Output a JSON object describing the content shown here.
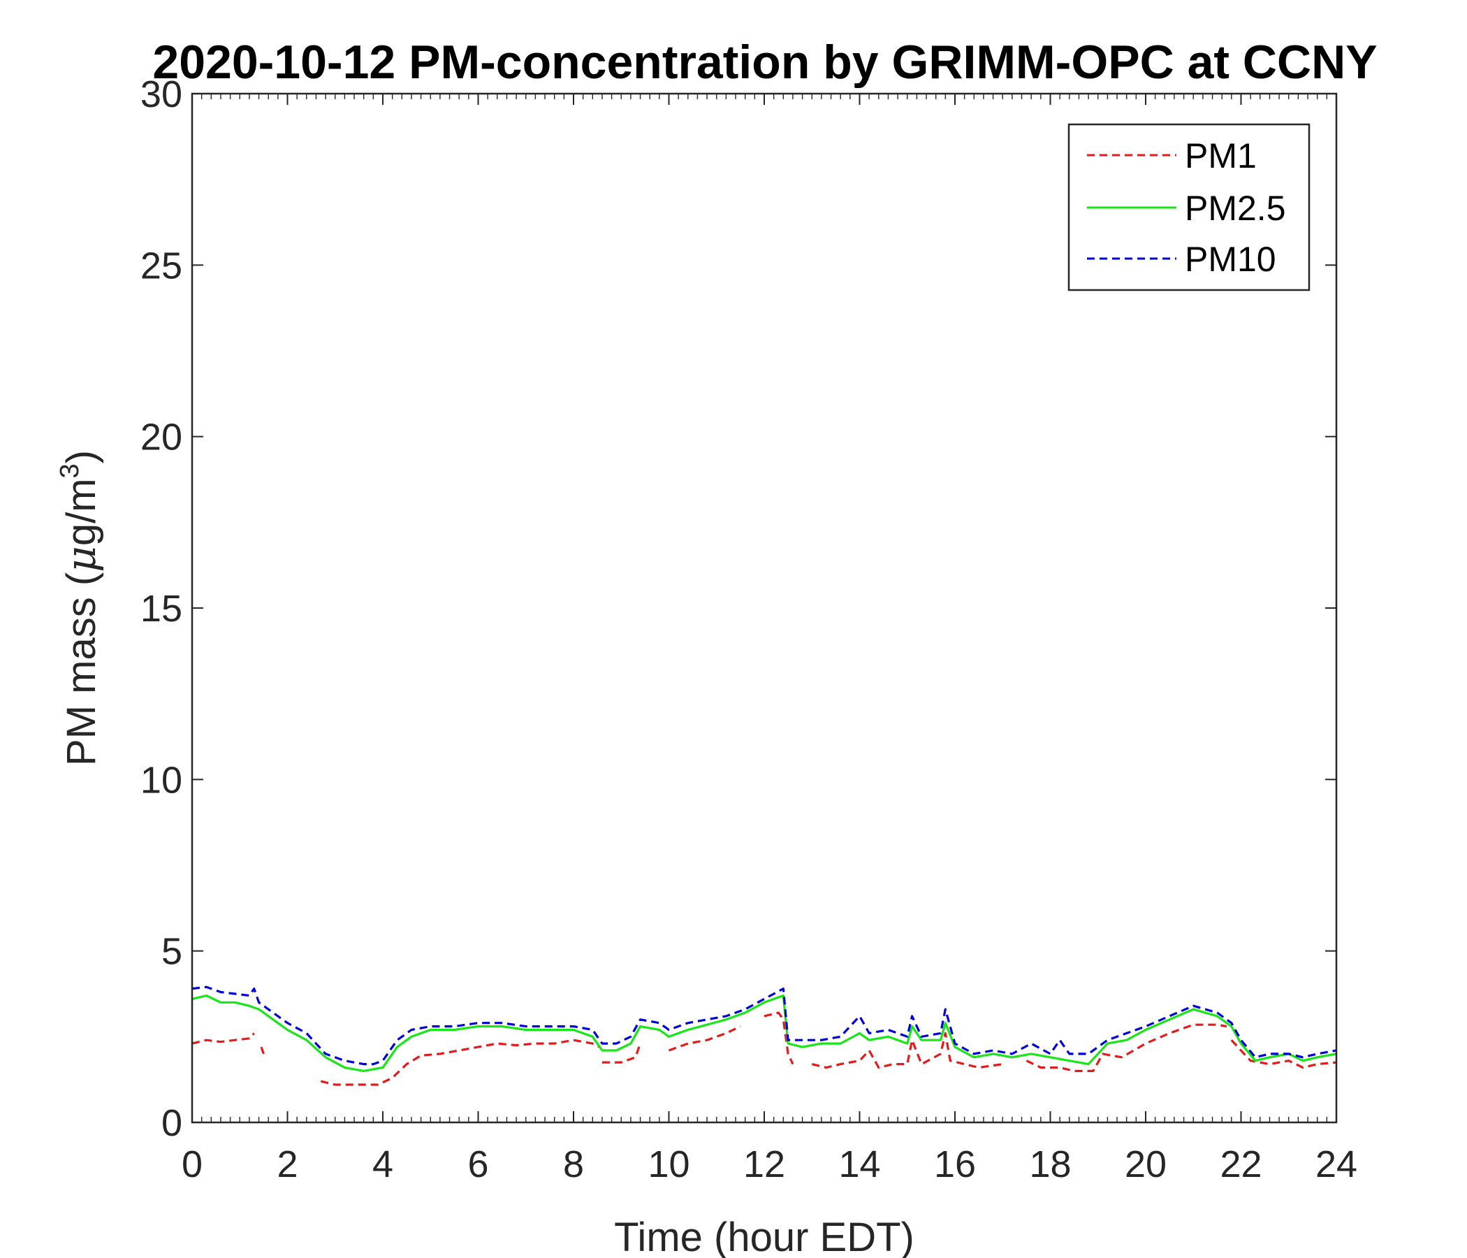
{
  "chart_data": {
    "type": "line",
    "title": "2020-10-12 PM-concentration by GRIMM-OPC at CCNY",
    "xlabel": "Time (hour EDT)",
    "ylabel_main": "PM mass (",
    "ylabel_mu": "μ",
    "ylabel_unit": "g/m",
    "ylabel_sup": "3",
    "ylabel_close": ")",
    "xlim": [
      0,
      24
    ],
    "ylim": [
      0,
      30
    ],
    "xticks": [
      "0",
      "2",
      "4",
      "6",
      "8",
      "10",
      "12",
      "14",
      "16",
      "18",
      "20",
      "22",
      "24"
    ],
    "yticks": [
      "0",
      "5",
      "10",
      "15",
      "20",
      "25",
      "30"
    ],
    "legend_position": "top-right",
    "grid": false,
    "series": [
      {
        "name": "PM1",
        "color": "#e41a1c",
        "dash": "dashed",
        "points": [
          [
            0,
            2.3
          ],
          [
            0.3,
            2.4
          ],
          [
            0.6,
            2.35
          ],
          [
            0.9,
            2.4
          ],
          [
            1.2,
            2.45
          ],
          [
            1.3,
            2.6
          ],
          null,
          [
            1.45,
            2.2
          ],
          [
            1.5,
            2.0
          ],
          null,
          [
            2.7,
            1.2
          ],
          [
            3.0,
            1.1
          ],
          [
            3.5,
            1.1
          ],
          [
            3.9,
            1.1
          ],
          [
            4.2,
            1.3
          ],
          [
            4.5,
            1.7
          ],
          [
            4.8,
            1.95
          ],
          [
            5.2,
            2.0
          ],
          [
            5.6,
            2.1
          ],
          [
            6.0,
            2.2
          ],
          [
            6.4,
            2.3
          ],
          [
            6.8,
            2.25
          ],
          [
            7.2,
            2.3
          ],
          [
            7.6,
            2.3
          ],
          [
            8.0,
            2.4
          ],
          [
            8.4,
            2.3
          ],
          [
            8.55,
            2.2
          ],
          null,
          [
            8.6,
            1.75
          ],
          [
            9.0,
            1.75
          ],
          [
            9.3,
            1.9
          ],
          [
            9.4,
            2.3
          ],
          null,
          [
            10.0,
            2.1
          ],
          [
            10.4,
            2.3
          ],
          [
            10.8,
            2.4
          ],
          [
            11.2,
            2.6
          ],
          [
            11.5,
            2.8
          ],
          null,
          [
            12.0,
            3.1
          ],
          [
            12.3,
            3.2
          ],
          [
            12.4,
            3.0
          ],
          [
            12.5,
            2.0
          ],
          [
            12.6,
            1.7
          ],
          null,
          [
            13.0,
            1.7
          ],
          [
            13.3,
            1.6
          ],
          [
            13.6,
            1.7
          ],
          [
            14.0,
            1.8
          ],
          [
            14.2,
            2.1
          ],
          [
            14.4,
            1.6
          ],
          [
            14.7,
            1.7
          ],
          [
            15.0,
            1.7
          ],
          [
            15.1,
            2.4
          ],
          [
            15.3,
            1.7
          ],
          [
            15.7,
            2.0
          ],
          [
            15.8,
            2.6
          ],
          [
            15.9,
            1.8
          ],
          [
            16.2,
            1.7
          ],
          [
            16.5,
            1.6
          ],
          [
            17.0,
            1.7
          ],
          null,
          [
            17.5,
            1.8
          ],
          [
            17.8,
            1.6
          ],
          [
            18.2,
            1.6
          ],
          [
            18.5,
            1.5
          ],
          [
            18.9,
            1.5
          ],
          [
            19.1,
            2.0
          ],
          [
            19.5,
            1.9
          ],
          [
            20.0,
            2.3
          ],
          [
            20.5,
            2.6
          ],
          [
            21.0,
            2.85
          ],
          [
            21.5,
            2.85
          ],
          [
            21.7,
            2.8
          ],
          null,
          [
            21.8,
            2.4
          ],
          [
            22.2,
            1.8
          ],
          [
            22.6,
            1.7
          ],
          [
            23.0,
            1.8
          ],
          [
            23.3,
            1.6
          ],
          [
            23.6,
            1.7
          ],
          [
            24.0,
            1.75
          ]
        ]
      },
      {
        "name": "PM2.5",
        "color": "#19e619",
        "dash": "solid",
        "points": [
          [
            0,
            3.6
          ],
          [
            0.3,
            3.7
          ],
          [
            0.6,
            3.5
          ],
          [
            0.9,
            3.5
          ],
          [
            1.2,
            3.4
          ],
          [
            1.4,
            3.3
          ],
          [
            1.7,
            3.0
          ],
          [
            2.0,
            2.7
          ],
          [
            2.4,
            2.4
          ],
          [
            2.8,
            1.9
          ],
          [
            3.2,
            1.6
          ],
          [
            3.6,
            1.5
          ],
          [
            4.0,
            1.6
          ],
          [
            4.3,
            2.2
          ],
          [
            4.6,
            2.5
          ],
          [
            5.0,
            2.7
          ],
          [
            5.5,
            2.7
          ],
          [
            6.0,
            2.8
          ],
          [
            6.5,
            2.8
          ],
          [
            7.0,
            2.7
          ],
          [
            7.5,
            2.7
          ],
          [
            8.0,
            2.7
          ],
          [
            8.4,
            2.5
          ],
          [
            8.6,
            2.1
          ],
          [
            8.9,
            2.1
          ],
          [
            9.2,
            2.3
          ],
          [
            9.4,
            2.8
          ],
          [
            9.8,
            2.7
          ],
          [
            10.0,
            2.5
          ],
          [
            10.4,
            2.7
          ],
          [
            10.8,
            2.85
          ],
          [
            11.2,
            3.0
          ],
          [
            11.6,
            3.2
          ],
          [
            12.0,
            3.5
          ],
          [
            12.4,
            3.7
          ],
          [
            12.5,
            2.3
          ],
          [
            12.8,
            2.2
          ],
          [
            13.2,
            2.3
          ],
          [
            13.6,
            2.3
          ],
          [
            14.0,
            2.6
          ],
          [
            14.2,
            2.4
          ],
          [
            14.6,
            2.5
          ],
          [
            15.0,
            2.3
          ],
          [
            15.1,
            2.8
          ],
          [
            15.3,
            2.4
          ],
          [
            15.7,
            2.4
          ],
          [
            15.8,
            2.9
          ],
          [
            16.0,
            2.2
          ],
          [
            16.4,
            1.9
          ],
          [
            16.8,
            2.0
          ],
          [
            17.2,
            1.9
          ],
          [
            17.6,
            2.0
          ],
          [
            18.0,
            1.9
          ],
          [
            18.4,
            1.8
          ],
          [
            18.8,
            1.7
          ],
          [
            19.2,
            2.3
          ],
          [
            19.6,
            2.4
          ],
          [
            20.0,
            2.7
          ],
          [
            20.5,
            3.0
          ],
          [
            21.0,
            3.3
          ],
          [
            21.5,
            3.1
          ],
          [
            21.8,
            2.8
          ],
          [
            22.0,
            2.3
          ],
          [
            22.3,
            1.8
          ],
          [
            22.6,
            1.9
          ],
          [
            23.0,
            2.0
          ],
          [
            23.3,
            1.8
          ],
          [
            23.6,
            1.9
          ],
          [
            24.0,
            2.0
          ]
        ]
      },
      {
        "name": "PM10",
        "color": "#0000d9",
        "dash": "dashed",
        "points": [
          [
            0,
            3.9
          ],
          [
            0.3,
            3.95
          ],
          [
            0.6,
            3.8
          ],
          [
            0.9,
            3.75
          ],
          [
            1.2,
            3.7
          ],
          [
            1.3,
            3.9
          ],
          [
            1.4,
            3.5
          ],
          [
            1.7,
            3.2
          ],
          [
            2.0,
            2.9
          ],
          [
            2.4,
            2.6
          ],
          [
            2.8,
            2.0
          ],
          [
            3.2,
            1.8
          ],
          [
            3.6,
            1.7
          ],
          [
            3.8,
            1.7
          ],
          [
            4.0,
            1.8
          ],
          [
            4.3,
            2.4
          ],
          [
            4.6,
            2.7
          ],
          [
            5.0,
            2.8
          ],
          [
            5.5,
            2.8
          ],
          [
            6.0,
            2.9
          ],
          [
            6.5,
            2.9
          ],
          [
            7.0,
            2.8
          ],
          [
            7.5,
            2.8
          ],
          [
            8.0,
            2.8
          ],
          [
            8.4,
            2.7
          ],
          [
            8.6,
            2.3
          ],
          [
            8.9,
            2.3
          ],
          [
            9.2,
            2.5
          ],
          [
            9.4,
            3.0
          ],
          [
            9.8,
            2.9
          ],
          [
            10.0,
            2.7
          ],
          [
            10.4,
            2.9
          ],
          [
            10.8,
            3.0
          ],
          [
            11.2,
            3.1
          ],
          [
            11.6,
            3.3
          ],
          [
            12.0,
            3.6
          ],
          [
            12.4,
            3.9
          ],
          [
            12.5,
            2.4
          ],
          [
            12.8,
            2.4
          ],
          [
            13.2,
            2.4
          ],
          [
            13.6,
            2.5
          ],
          [
            14.0,
            3.1
          ],
          [
            14.2,
            2.6
          ],
          [
            14.6,
            2.7
          ],
          [
            15.0,
            2.5
          ],
          [
            15.1,
            3.1
          ],
          [
            15.3,
            2.5
          ],
          [
            15.7,
            2.6
          ],
          [
            15.8,
            3.3
          ],
          [
            16.0,
            2.3
          ],
          [
            16.4,
            2.0
          ],
          [
            16.8,
            2.1
          ],
          [
            17.2,
            2.0
          ],
          [
            17.6,
            2.3
          ],
          [
            18.0,
            2.0
          ],
          [
            18.2,
            2.4
          ],
          [
            18.4,
            2.0
          ],
          [
            18.8,
            2.0
          ],
          [
            19.2,
            2.4
          ],
          [
            19.6,
            2.6
          ],
          [
            20.0,
            2.8
          ],
          [
            20.5,
            3.1
          ],
          [
            21.0,
            3.4
          ],
          [
            21.5,
            3.2
          ],
          [
            21.8,
            2.9
          ],
          [
            22.0,
            2.4
          ],
          [
            22.3,
            1.9
          ],
          [
            22.6,
            2.0
          ],
          [
            23.0,
            2.0
          ],
          [
            23.3,
            1.9
          ],
          [
            23.6,
            2.0
          ],
          [
            24.0,
            2.1
          ]
        ]
      }
    ]
  }
}
